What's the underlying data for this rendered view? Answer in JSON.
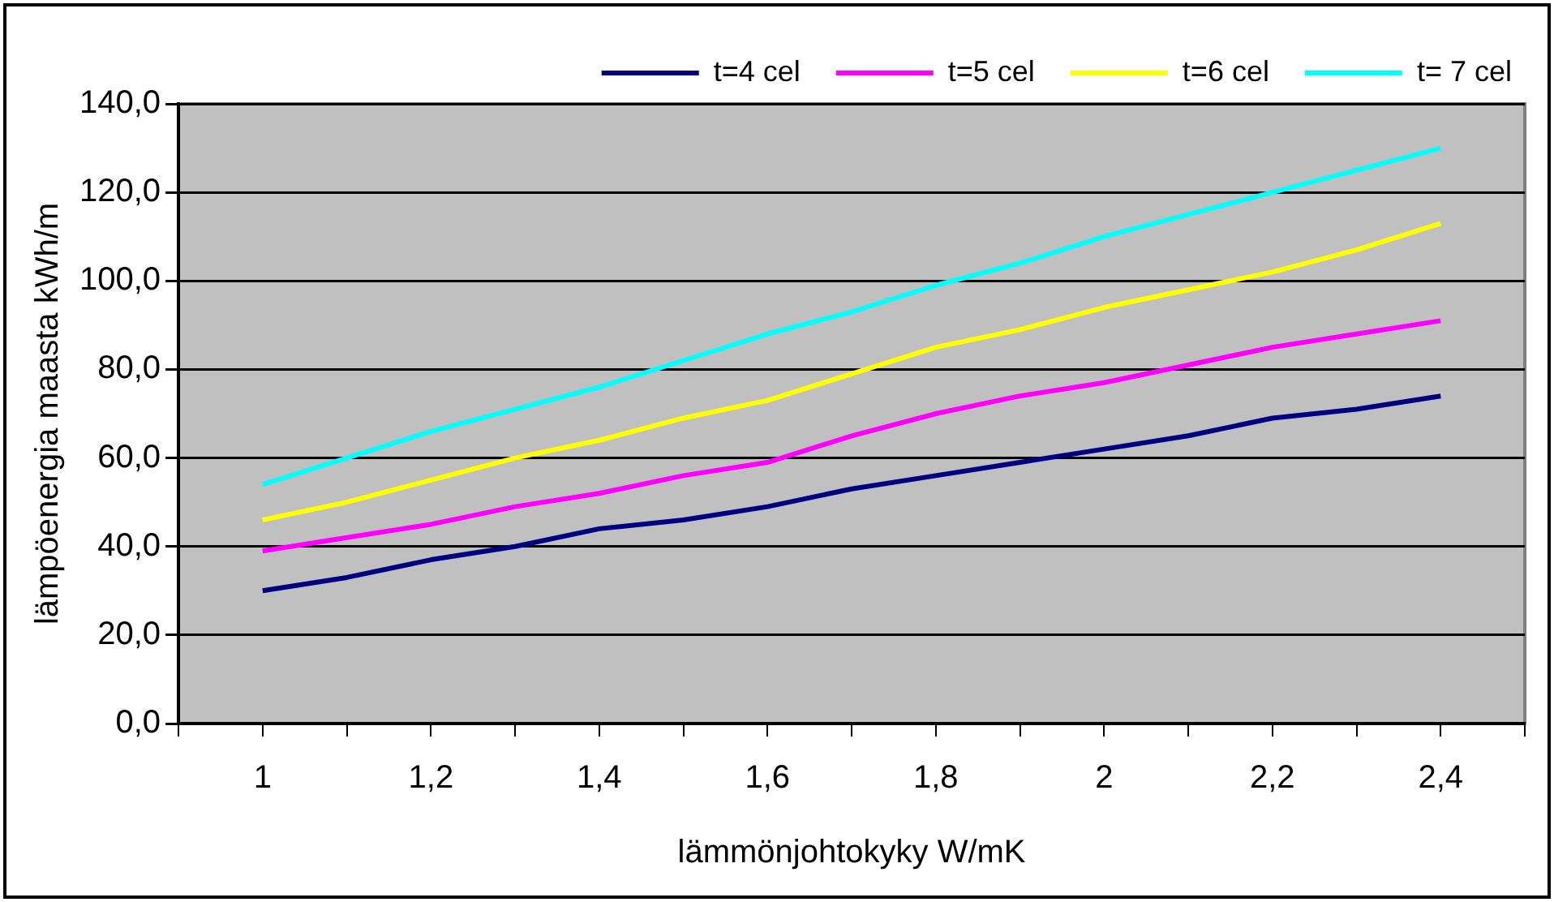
{
  "chart_data": {
    "type": "line",
    "xlabel": "lämmönjohtokyky W/mK",
    "ylabel": "lämpöenergia maasta kWh/m",
    "x": [
      1,
      1.1,
      1.2,
      1.3,
      1.4,
      1.5,
      1.6,
      1.7,
      1.8,
      1.9,
      2,
      2.1,
      2.2,
      2.3,
      2.4
    ],
    "series": [
      {
        "name": "t=4 cel",
        "color": "#000080",
        "values": [
          30,
          33,
          37,
          40,
          44,
          46,
          49,
          53,
          56,
          59,
          62,
          65,
          69,
          71,
          74
        ]
      },
      {
        "name": "t=5 cel",
        "color": "#ff00ff",
        "values": [
          39,
          42,
          45,
          49,
          52,
          56,
          59,
          65,
          70,
          74,
          77,
          81,
          85,
          88,
          91
        ]
      },
      {
        "name": "t=6 cel",
        "color": "#ffff00",
        "values": [
          46,
          50,
          55,
          60,
          64,
          69,
          73,
          79,
          85,
          89,
          94,
          98,
          102,
          107,
          113
        ]
      },
      {
        "name": "t= 7 cel",
        "color": "#00ffff",
        "values": [
          54,
          60,
          66,
          71,
          76,
          82,
          88,
          93,
          99,
          104,
          110,
          115,
          120,
          125,
          130
        ]
      }
    ],
    "xlim": [
      0.9,
      2.5
    ],
    "xticks": [
      {
        "value": 0.9,
        "label": null
      },
      {
        "value": 1,
        "label": "1"
      },
      {
        "value": 1.1,
        "label": null
      },
      {
        "value": 1.2,
        "label": "1,2"
      },
      {
        "value": 1.3,
        "label": null
      },
      {
        "value": 1.4,
        "label": "1,4"
      },
      {
        "value": 1.5,
        "label": null
      },
      {
        "value": 1.6,
        "label": "1,6"
      },
      {
        "value": 1.7,
        "label": null
      },
      {
        "value": 1.8,
        "label": "1,8"
      },
      {
        "value": 1.9,
        "label": null
      },
      {
        "value": 2,
        "label": "2"
      },
      {
        "value": 2.1,
        "label": null
      },
      {
        "value": 2.2,
        "label": "2,2"
      },
      {
        "value": 2.3,
        "label": null
      },
      {
        "value": 2.4,
        "label": "2,4"
      },
      {
        "value": 2.5,
        "label": null
      }
    ],
    "ylim": [
      0,
      140
    ],
    "yticks": [
      {
        "value": 0,
        "label": "0,0"
      },
      {
        "value": 20,
        "label": "20,0"
      },
      {
        "value": 40,
        "label": "40,0"
      },
      {
        "value": 60,
        "label": "60,0"
      },
      {
        "value": 80,
        "label": "80,0"
      },
      {
        "value": 100,
        "label": "100,0"
      },
      {
        "value": 120,
        "label": "120,0"
      },
      {
        "value": 140,
        "label": "140,0"
      }
    ],
    "grid": "y",
    "legend": "top",
    "marker": "none",
    "line_style": "solid"
  }
}
